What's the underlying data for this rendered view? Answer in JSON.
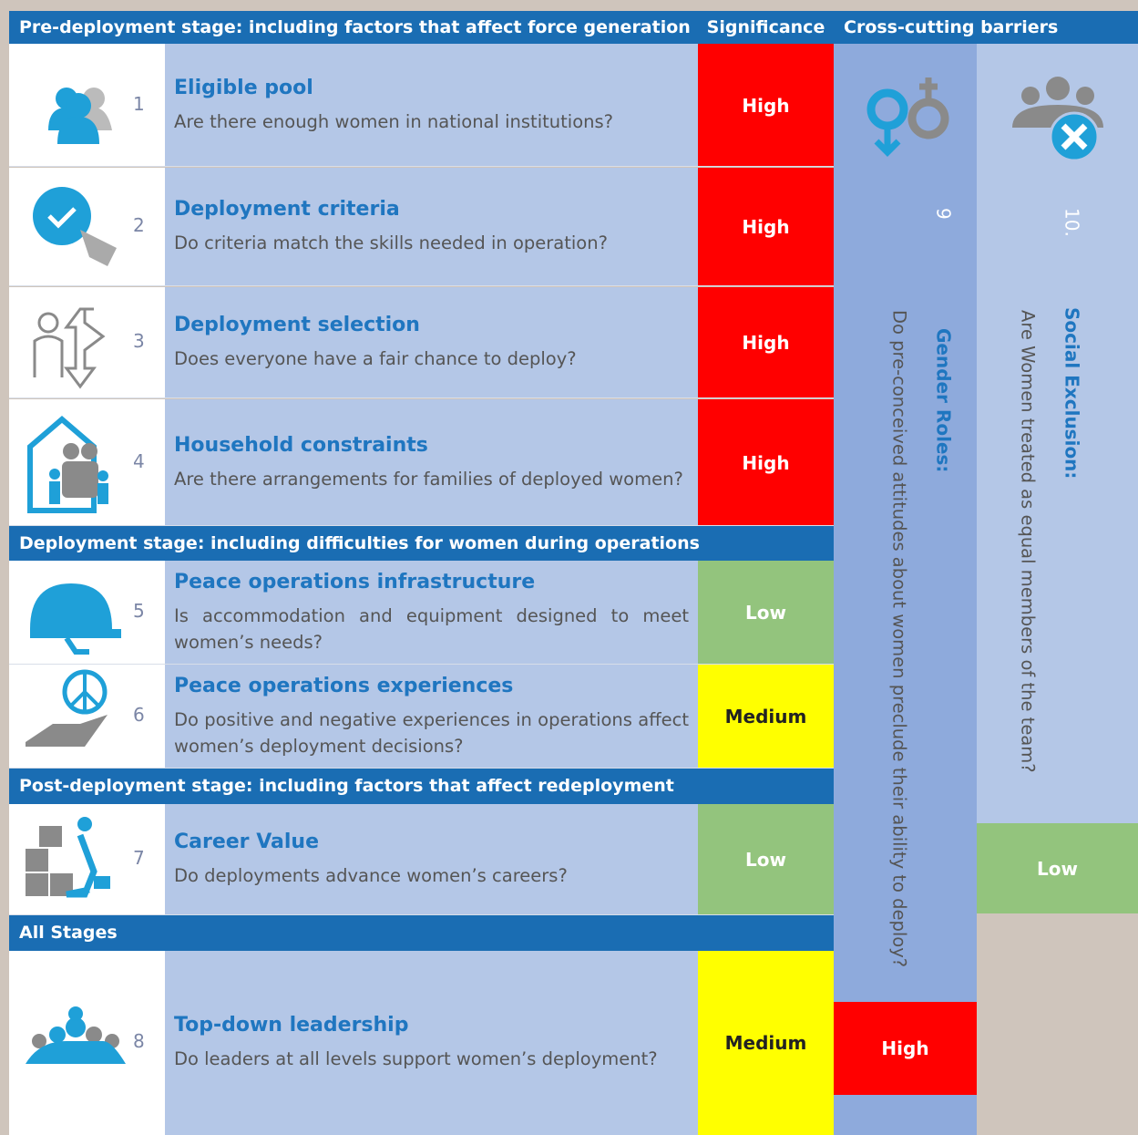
{
  "header": {
    "stage": "Pre-deployment stage: including factors that affect force generation",
    "significance": "Significance",
    "cross_cutting": "Cross-cutting barriers"
  },
  "rows": [
    {
      "number": "1",
      "title": "Eligible pool",
      "question": "Are there enough women in national institutions?",
      "significance": "High",
      "color": "#ff0000",
      "text_color": "#ffffff"
    },
    {
      "number": "2",
      "title": "Deployment criteria",
      "question": "Do criteria match the skills needed in operation?",
      "significance": "High",
      "color": "#ff0000",
      "text_color": "#ffffff"
    },
    {
      "number": "3",
      "title": "Deployment selection",
      "question": "Does everyone have a fair chance to deploy?",
      "significance": "High",
      "color": "#ff0000",
      "text_color": "#ffffff"
    },
    {
      "number": "4",
      "title": "Household constraints",
      "question": "Are there arrangements for families of deployed women?",
      "significance": "High",
      "color": "#ff0000",
      "text_color": "#ffffff"
    },
    {
      "number": "5",
      "title": "Peace operations infrastructure",
      "question": "Is accommodation and equipment designed to meet women’s needs?",
      "significance": "Low",
      "color": "#93c47d",
      "text_color": "#ffffff"
    },
    {
      "number": "6",
      "title": "Peace operations experiences",
      "question": "Do positive and negative experiences in operations affect women’s deployment decisions?",
      "significance": "Medium",
      "color": "#ffff00",
      "text_color": "#222222"
    },
    {
      "number": "7",
      "title": "Career Value",
      "question": "Do deployments advance women’s careers?",
      "significance": "Low",
      "color": "#93c47d",
      "text_color": "#ffffff"
    },
    {
      "number": "8",
      "title": "Top-down leadership",
      "question": "Do leaders at all levels support women’s deployment?",
      "significance": "Medium",
      "color": "#ffff00",
      "text_color": "#222222"
    }
  ],
  "sections": [
    "Deployment stage: including difficulties for women during operations",
    "Post-deployment stage: including factors that affect redeployment",
    "All Stages"
  ],
  "barriers": [
    {
      "number": "9",
      "title": "Gender Roles:",
      "question": "Do pre-conceived attitudes about women preclude their ability to deploy?",
      "significance": "High",
      "color": "#ff0000",
      "text_color": "#ffffff"
    },
    {
      "number": "10.",
      "title": "Social Exclusion:",
      "question": "Are Women treated as equal members of the team?",
      "significance": "Low",
      "color": "#93c47d",
      "text_color": "#ffffff"
    }
  ]
}
